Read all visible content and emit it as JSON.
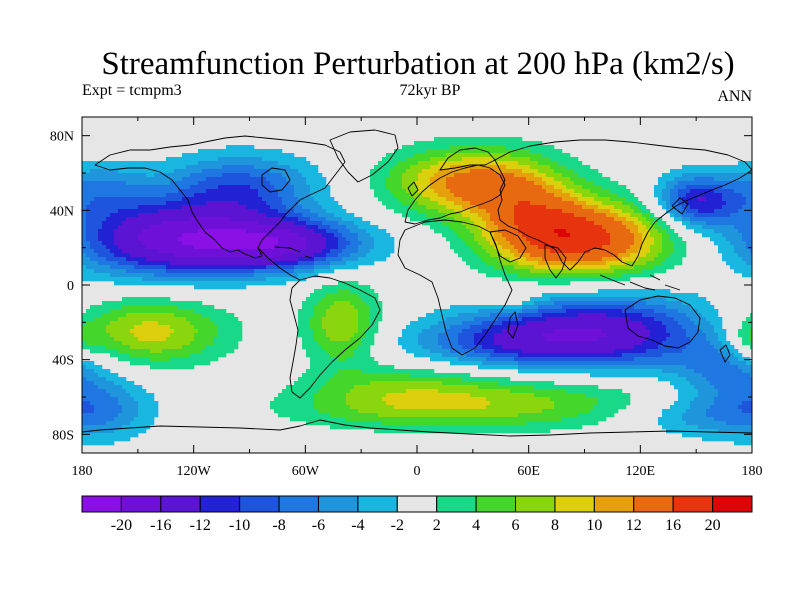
{
  "title": "Streamfunction Perturbation at 200 hPa (km2/s)",
  "left_string": "Expt = tcmpm3",
  "center_string": "72kyr BP",
  "right_string": "ANN",
  "lat_labels": [
    "80N",
    "40N",
    "0",
    "40S",
    "80S"
  ],
  "lat_values": [
    80,
    40,
    0,
    -40,
    -80
  ],
  "lon_labels": [
    "180",
    "120W",
    "60W",
    "0",
    "60E",
    "120E",
    "180"
  ],
  "lon_values": [
    -180,
    -120,
    -60,
    0,
    60,
    120,
    180
  ],
  "map_extent": {
    "lon_min": -180,
    "lon_max": 180,
    "lat_min": -90,
    "lat_max": 90
  },
  "colors": {
    "missing": "#e6e6e6",
    "coast": "#000000"
  },
  "colorbar": {
    "colors": [
      "#8a10e6",
      "#6f10d9",
      "#5a14d2",
      "#2222d4",
      "#1f55dd",
      "#1f78e2",
      "#1f96dc",
      "#19b6e0",
      "#e6e6e6",
      "#19d888",
      "#44d62a",
      "#8ad60e",
      "#dccf0e",
      "#e6a00e",
      "#e86a10",
      "#e6340f",
      "#dd0505"
    ],
    "labels": [
      "-20",
      "-16",
      "-12",
      "-10",
      "-8",
      "-6",
      "-4",
      "-2",
      "2",
      "4",
      "6",
      "8",
      "10",
      "12",
      "16",
      "20"
    ]
  },
  "field_blobs": [
    {
      "lon": -135,
      "lat": 25,
      "rx": 50,
      "ry": 20,
      "amp": -16
    },
    {
      "lon": -75,
      "lat": 22,
      "rx": 45,
      "ry": 14,
      "amp": -16
    },
    {
      "lon": -95,
      "lat": 52,
      "rx": 40,
      "ry": 18,
      "amp": -9
    },
    {
      "lon": -170,
      "lat": 52,
      "rx": 25,
      "ry": 15,
      "amp": -5
    },
    {
      "lon": 150,
      "lat": 45,
      "rx": 22,
      "ry": 14,
      "amp": -12
    },
    {
      "lon": 100,
      "lat": -25,
      "rx": 55,
      "ry": 20,
      "amp": -14
    },
    {
      "lon": 45,
      "lat": -30,
      "rx": 50,
      "ry": 14,
      "amp": -8
    },
    {
      "lon": 55,
      "lat": -62,
      "rx": 90,
      "ry": 15,
      "amp": 6
    },
    {
      "lon": 165,
      "lat": -45,
      "rx": 28,
      "ry": 18,
      "amp": -6
    },
    {
      "lon": -10,
      "lat": -68,
      "rx": 70,
      "ry": 10,
      "amp": 3
    },
    {
      "lon": 90,
      "lat": 25,
      "rx": 45,
      "ry": 20,
      "amp": 17
    },
    {
      "lon": 25,
      "lat": 55,
      "rx": 40,
      "ry": 18,
      "amp": 12
    },
    {
      "lon": 60,
      "lat": 40,
      "rx": 30,
      "ry": 25,
      "amp": 8
    },
    {
      "lon": -145,
      "lat": -25,
      "rx": 42,
      "ry": 18,
      "amp": 9
    },
    {
      "lon": -40,
      "lat": -20,
      "rx": 20,
      "ry": 22,
      "amp": 8
    },
    {
      "lon": -10,
      "lat": -55,
      "rx": 50,
      "ry": 12,
      "amp": 4
    },
    {
      "lon": 50,
      "lat": -8,
      "rx": 12,
      "ry": 6,
      "amp": 4
    },
    {
      "lon": -170,
      "lat": -65,
      "rx": 30,
      "ry": 18,
      "amp": -6
    },
    {
      "lon": 150,
      "lat": -70,
      "rx": 40,
      "ry": 12,
      "amp": -5
    },
    {
      "lon": 178,
      "lat": -30,
      "rx": 12,
      "ry": 10,
      "amp": 4
    }
  ]
}
